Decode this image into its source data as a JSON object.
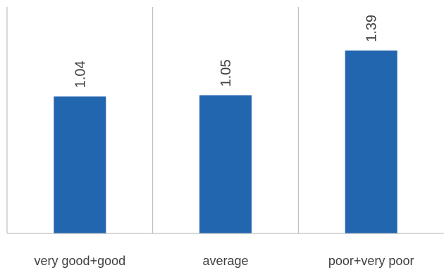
{
  "chart_data": {
    "type": "bar",
    "categories": [
      "very good+good",
      "average",
      "poor+very poor"
    ],
    "values": [
      1.04,
      1.05,
      1.39
    ],
    "value_labels": [
      "1.04",
      "1.05",
      "1.39"
    ],
    "title": "",
    "xlabel": "",
    "ylabel": "",
    "ylim": [
      0,
      1.72
    ],
    "grid": "vertical separators between categories",
    "legend": "none",
    "bar_color": "#2266b0",
    "axis_color": "#b3b3b3",
    "text_color": "#404040"
  }
}
